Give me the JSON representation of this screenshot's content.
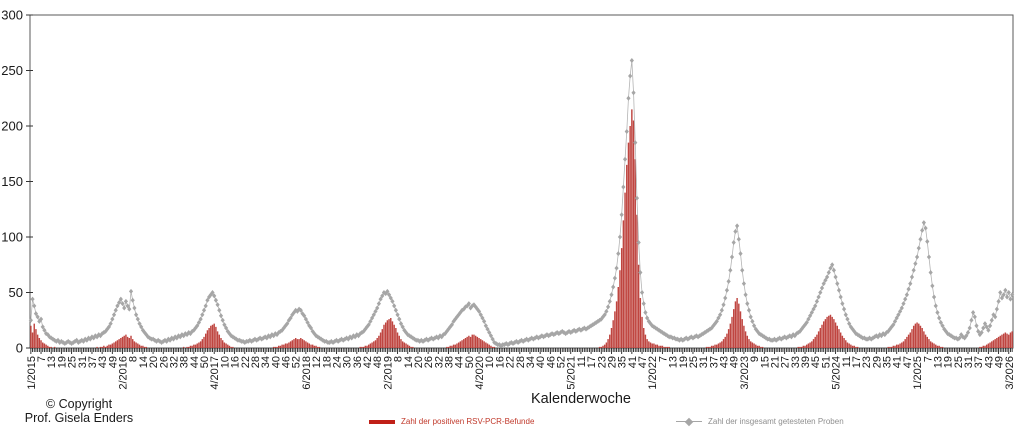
{
  "page": {
    "background": "#ffffff"
  },
  "copyright": {
    "line1": "© Copyright",
    "line2": "Prof.  Gisela Enders"
  },
  "x_axis_title": "Kalenderwoche",
  "legend": {
    "positives": {
      "label": "Zahl der positiven RSV-PCR-Befunde",
      "color": "#c0392b",
      "swatch_color": "#c02018"
    },
    "tested": {
      "label": "Zahl der insgesamt getesteten Proben",
      "color": "#8f8f8f",
      "swatch_color": "#a6a6a6"
    }
  },
  "chart_data": {
    "type": "bar",
    "combo": "bar + line-with-diamond-markers",
    "title": "",
    "xlabel": "Kalenderwoche",
    "ylabel": "",
    "ylim": [
      0,
      300
    ],
    "y_ticks": [
      0,
      50,
      100,
      150,
      200,
      250,
      300
    ],
    "grid": false,
    "legend_position": "bottom",
    "n_weeks": 579,
    "weeks_start": "1/2015",
    "weeks_end": "5/2026",
    "x_label_every_n_weeks": 6,
    "x_tick_labels": [
      "1/2015",
      "7",
      "13",
      "19",
      "25",
      "31",
      "37",
      "43",
      "49",
      "2/2016",
      "8",
      "14",
      "20",
      "26",
      "32",
      "38",
      "44",
      "50",
      "4/2017",
      "10",
      "16",
      "22",
      "28",
      "34",
      "40",
      "46",
      "52",
      "6/2018",
      "12",
      "18",
      "24",
      "30",
      "36",
      "42",
      "48",
      "2/2019",
      "8",
      "14",
      "20",
      "26",
      "32",
      "38",
      "44",
      "50",
      "4/2020",
      "10",
      "16",
      "22",
      "28",
      "34",
      "40",
      "46",
      "52",
      "5/2021",
      "11",
      "17",
      "23",
      "29",
      "35",
      "41",
      "47",
      "1/2022",
      "7",
      "13",
      "19",
      "25",
      "31",
      "37",
      "43",
      "49",
      "3/2023",
      "9",
      "15",
      "21",
      "27",
      "33",
      "39",
      "45",
      "51",
      "5/2024",
      "11",
      "17",
      "23",
      "29",
      "35",
      "41",
      "47",
      "1/2025",
      "7",
      "13",
      "19",
      "25",
      "31",
      "37",
      "43",
      "49",
      "3/2026"
    ],
    "series": [
      {
        "name": "Zahl der positiven RSV-PCR-Befunde",
        "type": "bar",
        "color": "#bf4540",
        "values": [
          20,
          14,
          22,
          17,
          12,
          9,
          7,
          5,
          4,
          3,
          2,
          1,
          1,
          0,
          1,
          0,
          0,
          0,
          0,
          0,
          0,
          0,
          0,
          0,
          0,
          0,
          0,
          0,
          0,
          0,
          0,
          0,
          0,
          0,
          0,
          0,
          0,
          0,
          0,
          1,
          0,
          1,
          1,
          2,
          1,
          2,
          3,
          3,
          4,
          5,
          6,
          7,
          8,
          9,
          10,
          11,
          12,
          10,
          9,
          11,
          8,
          6,
          5,
          4,
          3,
          2,
          2,
          1,
          1,
          0,
          0,
          0,
          0,
          0,
          0,
          0,
          0,
          0,
          0,
          0,
          0,
          0,
          0,
          0,
          0,
          0,
          0,
          0,
          0,
          0,
          1,
          0,
          1,
          1,
          2,
          2,
          3,
          3,
          4,
          5,
          6,
          8,
          10,
          13,
          16,
          18,
          20,
          21,
          22,
          19,
          15,
          12,
          9,
          7,
          5,
          4,
          3,
          2,
          1,
          1,
          0,
          0,
          0,
          0,
          0,
          0,
          0,
          0,
          0,
          0,
          0,
          0,
          0,
          0,
          0,
          0,
          0,
          0,
          0,
          0,
          0,
          0,
          0,
          1,
          1,
          1,
          2,
          2,
          3,
          3,
          4,
          4,
          5,
          6,
          7,
          8,
          9,
          8,
          8,
          9,
          8,
          7,
          6,
          5,
          4,
          3,
          3,
          2,
          2,
          1,
          1,
          0,
          0,
          0,
          0,
          0,
          0,
          0,
          0,
          0,
          0,
          0,
          0,
          0,
          0,
          0,
          0,
          0,
          0,
          0,
          0,
          0,
          0,
          0,
          1,
          1,
          1,
          2,
          2,
          3,
          4,
          5,
          6,
          7,
          9,
          11,
          14,
          17,
          21,
          23,
          25,
          26,
          27,
          24,
          21,
          18,
          14,
          11,
          8,
          6,
          5,
          4,
          3,
          2,
          1,
          1,
          0,
          0,
          0,
          0,
          0,
          0,
          0,
          0,
          0,
          0,
          0,
          0,
          0,
          0,
          0,
          0,
          0,
          0,
          0,
          1,
          1,
          2,
          2,
          3,
          3,
          4,
          5,
          6,
          7,
          8,
          9,
          10,
          11,
          10,
          12,
          12,
          11,
          10,
          9,
          8,
          7,
          6,
          5,
          4,
          3,
          2,
          1,
          1,
          0,
          0,
          0,
          0,
          0,
          0,
          0,
          0,
          0,
          0,
          0,
          0,
          0,
          0,
          0,
          0,
          0,
          0,
          0,
          0,
          0,
          0,
          0,
          0,
          0,
          0,
          0,
          0,
          0,
          0,
          0,
          0,
          0,
          0,
          0,
          0,
          0,
          0,
          0,
          0,
          0,
          0,
          0,
          0,
          0,
          0,
          0,
          0,
          0,
          0,
          0,
          0,
          0,
          0,
          0,
          0,
          0,
          0,
          0,
          0,
          0,
          1,
          1,
          2,
          3,
          5,
          8,
          12,
          18,
          25,
          33,
          42,
          55,
          70,
          90,
          115,
          140,
          165,
          185,
          200,
          215,
          205,
          170,
          120,
          75,
          45,
          28,
          18,
          12,
          8,
          6,
          5,
          4,
          4,
          3,
          3,
          2,
          2,
          2,
          1,
          1,
          1,
          1,
          0,
          0,
          0,
          0,
          0,
          0,
          0,
          0,
          0,
          0,
          0,
          0,
          0,
          0,
          0,
          0,
          0,
          0,
          0,
          0,
          0,
          1,
          1,
          1,
          2,
          2,
          3,
          3,
          4,
          5,
          6,
          8,
          10,
          13,
          17,
          22,
          28,
          35,
          42,
          45,
          40,
          33,
          26,
          20,
          15,
          11,
          8,
          6,
          5,
          4,
          3,
          2,
          2,
          1,
          1,
          0,
          0,
          0,
          0,
          0,
          0,
          0,
          0,
          0,
          0,
          0,
          0,
          0,
          0,
          0,
          0,
          0,
          0,
          0,
          0,
          1,
          1,
          1,
          2,
          2,
          3,
          4,
          5,
          6,
          8,
          10,
          12,
          15,
          18,
          21,
          24,
          26,
          28,
          29,
          30,
          28,
          26,
          23,
          20,
          17,
          14,
          11,
          9,
          7,
          5,
          4,
          3,
          2,
          2,
          1,
          1,
          0,
          0,
          0,
          0,
          0,
          0,
          0,
          0,
          0,
          0,
          0,
          0,
          0,
          0,
          0,
          0,
          0,
          1,
          1,
          1,
          2,
          2,
          3,
          3,
          4,
          5,
          6,
          8,
          10,
          12,
          14,
          17,
          20,
          22,
          23,
          22,
          20,
          18,
          15,
          12,
          10,
          8,
          6,
          5,
          4,
          3,
          2,
          2,
          1,
          1,
          0,
          0,
          0,
          0,
          0,
          0,
          0,
          0,
          0,
          0,
          0,
          0,
          0,
          0,
          0,
          0,
          0,
          0,
          0,
          0,
          0,
          1,
          1,
          2,
          2,
          3,
          4,
          5,
          6,
          7,
          8,
          9,
          10,
          11,
          12,
          13,
          14,
          13,
          12,
          14,
          15
        ]
      },
      {
        "name": "Zahl der insgesamt getesteten Proben",
        "type": "line",
        "marker": "diamond",
        "color": "#a6a6a6",
        "values": [
          25,
          44,
          38,
          31,
          28,
          24,
          26,
          19,
          16,
          13,
          12,
          10,
          9,
          8,
          7,
          6,
          7,
          5,
          6,
          5,
          4,
          5,
          6,
          5,
          4,
          5,
          6,
          7,
          5,
          6,
          7,
          6,
          8,
          7,
          9,
          8,
          10,
          9,
          11,
          10,
          12,
          11,
          13,
          14,
          15,
          17,
          19,
          22,
          26,
          30,
          34,
          38,
          41,
          44,
          40,
          36,
          42,
          38,
          35,
          51,
          43,
          36,
          30,
          26,
          22,
          19,
          16,
          14,
          12,
          10,
          9,
          8,
          8,
          7,
          6,
          7,
          6,
          5,
          6,
          7,
          6,
          8,
          7,
          9,
          8,
          10,
          9,
          11,
          10,
          12,
          11,
          13,
          12,
          14,
          13,
          15,
          16,
          18,
          20,
          23,
          26,
          30,
          34,
          38,
          43,
          46,
          48,
          50,
          47,
          43,
          39,
          34,
          29,
          25,
          21,
          18,
          15,
          13,
          11,
          10,
          9,
          8,
          7,
          7,
          6,
          6,
          5,
          6,
          6,
          7,
          6,
          7,
          8,
          7,
          8,
          9,
          8,
          9,
          10,
          9,
          11,
          10,
          12,
          11,
          13,
          12,
          14,
          15,
          16,
          18,
          20,
          22,
          25,
          27,
          30,
          32,
          34,
          33,
          35,
          34,
          31,
          29,
          26,
          23,
          20,
          18,
          15,
          13,
          11,
          10,
          9,
          8,
          7,
          6,
          6,
          5,
          5,
          6,
          5,
          6,
          7,
          6,
          7,
          8,
          7,
          8,
          9,
          8,
          10,
          9,
          11,
          10,
          12,
          11,
          13,
          14,
          15,
          17,
          19,
          21,
          24,
          27,
          30,
          33,
          36,
          40,
          44,
          47,
          50,
          49,
          51,
          48,
          45,
          42,
          38,
          34,
          30,
          26,
          22,
          19,
          16,
          14,
          12,
          11,
          10,
          9,
          8,
          7,
          7,
          6,
          7,
          6,
          7,
          8,
          7,
          8,
          9,
          8,
          9,
          10,
          9,
          11,
          10,
          12,
          13,
          15,
          17,
          19,
          21,
          24,
          26,
          28,
          30,
          32,
          34,
          35,
          37,
          38,
          40,
          36,
          38,
          39,
          37,
          35,
          33,
          30,
          27,
          24,
          20,
          17,
          14,
          11,
          8,
          5,
          4,
          3,
          3,
          2,
          3,
          3,
          4,
          3,
          4,
          5,
          4,
          5,
          6,
          5,
          6,
          7,
          6,
          7,
          8,
          7,
          8,
          9,
          8,
          9,
          10,
          9,
          10,
          11,
          10,
          11,
          12,
          11,
          12,
          13,
          12,
          13,
          14,
          13,
          14,
          15,
          14,
          13,
          14,
          15,
          14,
          15,
          16,
          15,
          16,
          17,
          16,
          17,
          18,
          17,
          18,
          19,
          20,
          21,
          22,
          23,
          24,
          25,
          26,
          28,
          30,
          33,
          37,
          42,
          48,
          55,
          63,
          72,
          85,
          100,
          120,
          145,
          170,
          195,
          225,
          245,
          259,
          230,
          185,
          135,
          95,
          68,
          50,
          40,
          32,
          27,
          24,
          22,
          20,
          19,
          18,
          17,
          16,
          15,
          14,
          13,
          12,
          11,
          10,
          10,
          9,
          9,
          8,
          8,
          7,
          8,
          7,
          8,
          9,
          8,
          9,
          10,
          9,
          10,
          11,
          10,
          11,
          12,
          13,
          14,
          15,
          16,
          17,
          18,
          20,
          22,
          24,
          27,
          30,
          34,
          39,
          45,
          52,
          60,
          70,
          82,
          95,
          105,
          110,
          98,
          85,
          70,
          58,
          48,
          40,
          34,
          28,
          24,
          20,
          17,
          15,
          13,
          12,
          11,
          10,
          9,
          8,
          8,
          7,
          7,
          8,
          7,
          8,
          9,
          8,
          9,
          10,
          9,
          10,
          11,
          10,
          12,
          11,
          13,
          14,
          15,
          17,
          19,
          21,
          23,
          26,
          29,
          32,
          35,
          38,
          42,
          46,
          50,
          54,
          58,
          61,
          64,
          68,
          72,
          75,
          70,
          64,
          58,
          52,
          46,
          40,
          35,
          30,
          26,
          22,
          19,
          17,
          15,
          13,
          12,
          11,
          10,
          9,
          9,
          8,
          8,
          9,
          8,
          9,
          10,
          11,
          10,
          12,
          11,
          13,
          12,
          14,
          15,
          17,
          19,
          21,
          24,
          27,
          30,
          33,
          36,
          40,
          44,
          48,
          53,
          58,
          64,
          70,
          76,
          82,
          90,
          98,
          106,
          113,
          108,
          96,
          82,
          68,
          56,
          46,
          38,
          32,
          27,
          23,
          20,
          17,
          15,
          13,
          12,
          11,
          10,
          9,
          9,
          8,
          9,
          12,
          10,
          9,
          11,
          14,
          18,
          25,
          32,
          28,
          20,
          15,
          12,
          14,
          18,
          22,
          19,
          16,
          20,
          25,
          30,
          28,
          35,
          42,
          50,
          45,
          48,
          52,
          46,
          50,
          44,
          48
        ]
      }
    ]
  }
}
